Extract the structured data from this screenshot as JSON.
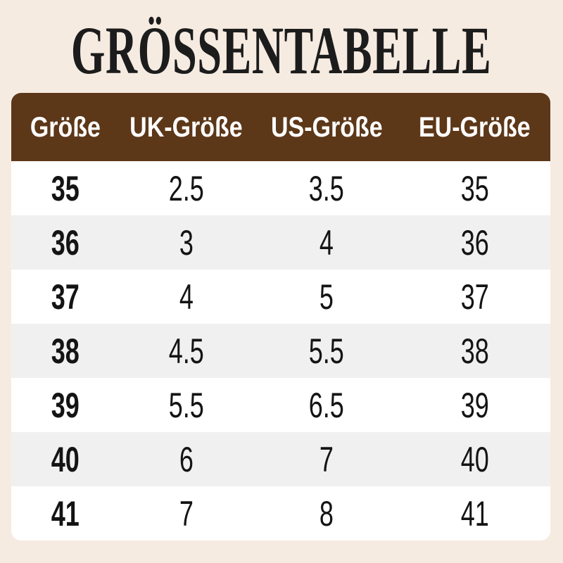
{
  "page": {
    "background_color": "#f6ebe1"
  },
  "title": {
    "text": "GRÖSSENTABELLE",
    "color": "#1c1c1c"
  },
  "size_table": {
    "header": {
      "background_color": "#5c3718",
      "text_color": "#ffffff",
      "columns": [
        "Größe",
        "UK-Größe",
        "US-Größe",
        "EU-Größe"
      ]
    },
    "row_stripe_colors": {
      "odd": "#ffffff",
      "even": "#f0f0f0"
    },
    "rows": [
      [
        "35",
        "2.5",
        "3.5",
        "35"
      ],
      [
        "36",
        "3",
        "4",
        "36"
      ],
      [
        "37",
        "4",
        "5",
        "37"
      ],
      [
        "38",
        "4.5",
        "5.5",
        "38"
      ],
      [
        "39",
        "5.5",
        "6.5",
        "39"
      ],
      [
        "40",
        "6",
        "7",
        "40"
      ],
      [
        "41",
        "7",
        "8",
        "41"
      ]
    ]
  },
  "chart_data": {
    "type": "table",
    "title": "GRÖSSENTABELLE",
    "columns": [
      "Größe",
      "UK-Größe",
      "US-Größe",
      "EU-Größe"
    ],
    "rows": [
      [
        "35",
        "2.5",
        "3.5",
        "35"
      ],
      [
        "36",
        "3",
        "4",
        "36"
      ],
      [
        "37",
        "4",
        "5",
        "37"
      ],
      [
        "38",
        "4.5",
        "5.5",
        "38"
      ],
      [
        "39",
        "5.5",
        "6.5",
        "39"
      ],
      [
        "40",
        "6",
        "7",
        "40"
      ],
      [
        "41",
        "7",
        "8",
        "41"
      ]
    ]
  }
}
